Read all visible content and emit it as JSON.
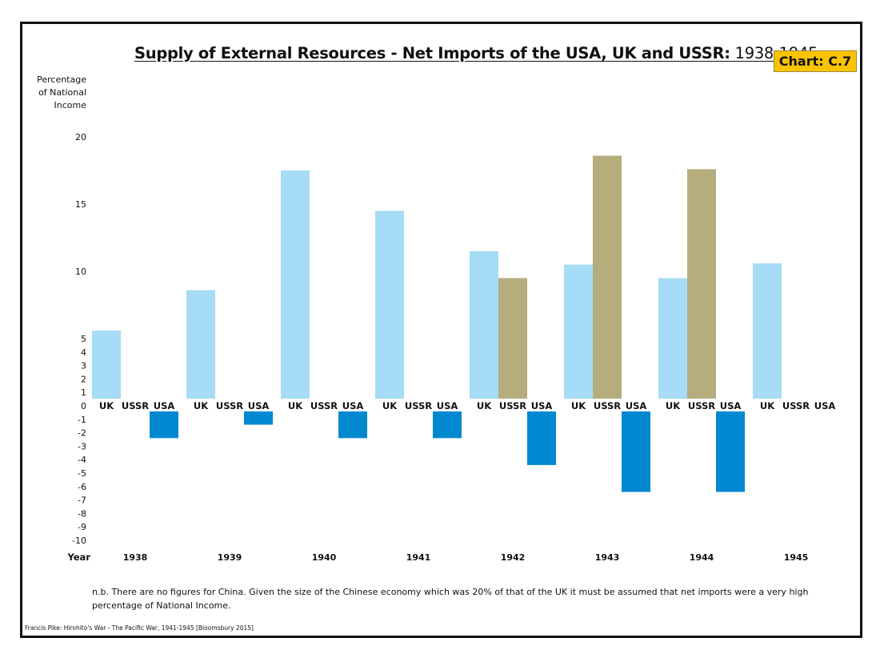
{
  "title": {
    "main": "Supply of External Resources - Net Imports of the USA, UK and USSR:",
    "years": " 1938-1945"
  },
  "badge": "Chart: C.7",
  "y_axis_title": [
    "Percentage",
    "of National",
    "Income"
  ],
  "note": "n.b.  There are no figures for China.  Given the size of the Chinese economy which was 20% of that of the UK it must be assumed that net imports were a very high percentage of National Income.",
  "source": "Francis Pike:  Hirohito's War - The Pacific War, 1941-1945   [Bloomsbury 2015]",
  "colors": {
    "UK": "#a6dcf5",
    "USSR": "#b5ad7e",
    "USA": "#0088d1",
    "badge": "#f8c400"
  },
  "chart_data": {
    "type": "bar",
    "title": "Supply of External Resources - Net Imports of the USA, UK and USSR: 1938-1945",
    "xlabel": "Year",
    "ylabel": "Percentage of National Income",
    "categories": [
      "1938",
      "1939",
      "1940",
      "1941",
      "1942",
      "1943",
      "1944",
      "1945"
    ],
    "series": [
      {
        "name": "UK",
        "values": [
          5.6,
          8.6,
          17.5,
          14.5,
          11.5,
          10.5,
          9.5,
          10.6
        ]
      },
      {
        "name": "USSR",
        "values": [
          null,
          null,
          null,
          null,
          9.5,
          18.6,
          17.6,
          null
        ]
      },
      {
        "name": "USA",
        "values": [
          -2.4,
          -1.4,
          -2.4,
          -2.4,
          -4.4,
          -6.4,
          -6.4,
          null
        ]
      }
    ],
    "y_ticks": [
      20,
      15,
      10,
      5,
      4,
      3,
      2,
      1,
      0,
      -1,
      -2,
      -3,
      -4,
      -5,
      -6,
      -7,
      -8,
      -9,
      -10
    ],
    "ylim": [
      -10,
      20
    ],
    "grid": false,
    "legend": "series names shown beneath each bar group"
  }
}
